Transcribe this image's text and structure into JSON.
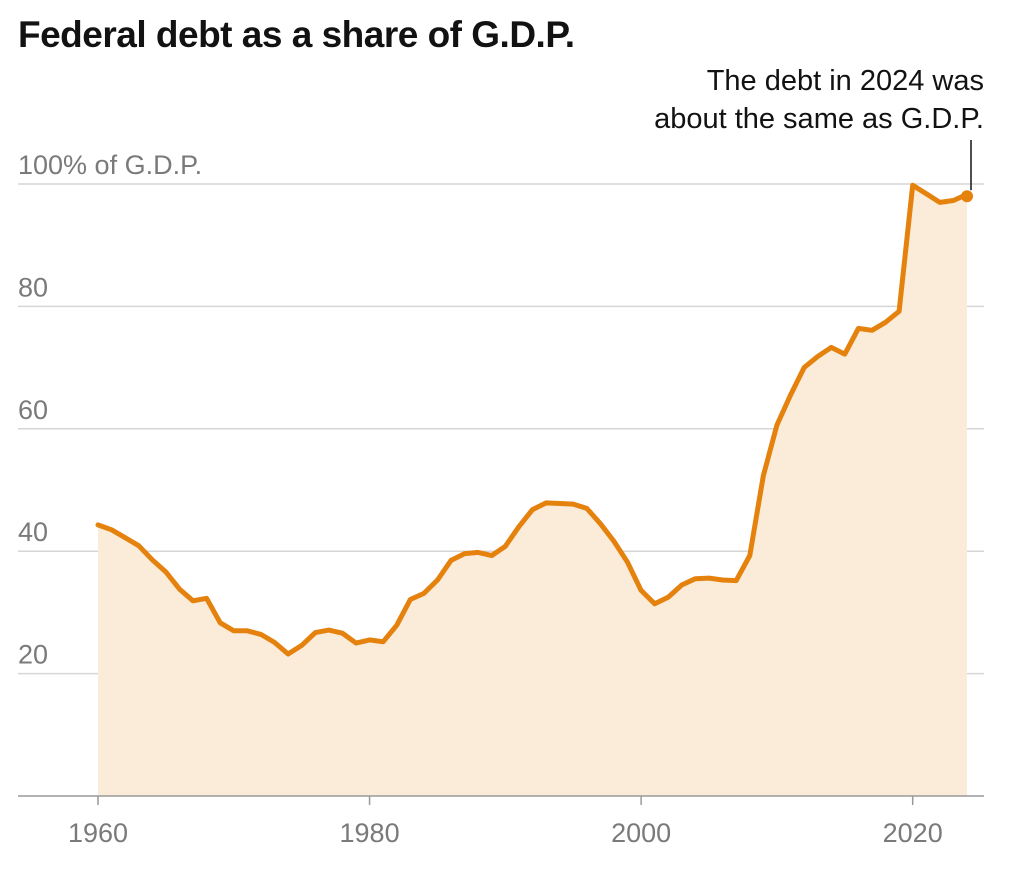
{
  "chart_data": {
    "type": "area",
    "title": "Federal debt as a share of G.D.P.",
    "xlabel": "",
    "ylabel": "",
    "xlim": [
      1960,
      2024
    ],
    "ylim": [
      0,
      100
    ],
    "y_ticks": [
      {
        "value": 20,
        "label": "20"
      },
      {
        "value": 40,
        "label": "40"
      },
      {
        "value": 60,
        "label": "60"
      },
      {
        "value": 80,
        "label": "80"
      },
      {
        "value": 100,
        "label": "100% of G.D.P."
      }
    ],
    "x_ticks": [
      {
        "value": 1960,
        "label": "1960"
      },
      {
        "value": 1980,
        "label": "1980"
      },
      {
        "value": 2000,
        "label": "2000"
      },
      {
        "value": 2020,
        "label": "2020"
      }
    ],
    "grid": true,
    "colors": {
      "line": "#e5820e",
      "fill": "#fbebd9",
      "grid": "#d6d6d6",
      "axis": "#999999"
    },
    "annotation": {
      "lines": [
        "The debt in 2024 was",
        "about the same as G.D.P."
      ],
      "x": 2024,
      "y": 98
    },
    "series": [
      {
        "x": [
          1960,
          1961,
          1962,
          1963,
          1964,
          1965,
          1966,
          1967,
          1968,
          1969,
          1970,
          1971,
          1972,
          1973,
          1974,
          1975,
          1976,
          1977,
          1978,
          1979,
          1980,
          1981,
          1982,
          1983,
          1984,
          1985,
          1986,
          1987,
          1988,
          1989,
          1990,
          1991,
          1992,
          1993,
          1994,
          1995,
          1996,
          1997,
          1998,
          1999,
          2000,
          2001,
          2002,
          2003,
          2004,
          2005,
          2006,
          2007,
          2008,
          2009,
          2010,
          2011,
          2012,
          2013,
          2014,
          2015,
          2016,
          2017,
          2018,
          2019,
          2020,
          2021,
          2022,
          2023,
          2024
        ],
        "values": [
          44.3,
          43.5,
          42.2,
          40.9,
          38.6,
          36.6,
          33.8,
          31.9,
          32.3,
          28.3,
          27.0,
          27.0,
          26.4,
          25.1,
          23.2,
          24.6,
          26.7,
          27.1,
          26.6,
          25.0,
          25.5,
          25.2,
          27.9,
          32.1,
          33.1,
          35.3,
          38.5,
          39.6,
          39.8,
          39.3,
          40.8,
          44.0,
          46.8,
          47.9,
          47.8,
          47.7,
          47.0,
          44.5,
          41.6,
          38.2,
          33.6,
          31.4,
          32.5,
          34.5,
          35.5,
          35.6,
          35.3,
          35.2,
          39.3,
          52.3,
          60.6,
          65.5,
          70.0,
          71.8,
          73.3,
          72.2,
          76.4,
          76.1,
          77.4,
          79.2,
          99.8,
          98.4,
          97.0,
          97.3,
          98.3
        ]
      }
    ]
  }
}
